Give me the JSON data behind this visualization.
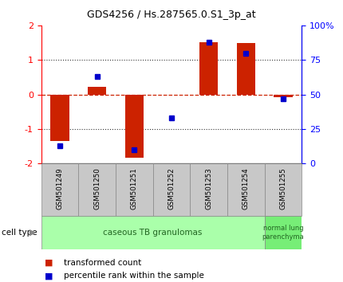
{
  "title": "GDS4256 / Hs.287565.0.S1_3p_at",
  "samples": [
    "GSM501249",
    "GSM501250",
    "GSM501251",
    "GSM501252",
    "GSM501253",
    "GSM501254",
    "GSM501255"
  ],
  "transformed_count": [
    -1.35,
    0.22,
    -1.82,
    -0.02,
    1.52,
    1.48,
    -0.08
  ],
  "percentile_rank": [
    13,
    63,
    10,
    33,
    88,
    80,
    47
  ],
  "ylim_left": [
    -2,
    2
  ],
  "ylim_right": [
    0,
    100
  ],
  "yticks_left": [
    -2,
    -1,
    0,
    1,
    2
  ],
  "yticks_right": [
    0,
    25,
    50,
    75,
    100
  ],
  "ytick_labels_right": [
    "0",
    "25",
    "50",
    "75",
    "100%"
  ],
  "bar_color": "#CC2200",
  "dot_color": "#0000CC",
  "zero_line_color": "#CC2200",
  "dotted_line_color": "#333333",
  "sample_box_color": "#C8C8C8",
  "group1_color": "#AAFFAA",
  "group2_color": "#77EE77",
  "group1_label": "caseous TB granulomas",
  "group2_label": "normal lung\nparenchyma",
  "group1_count": 6,
  "group2_count": 1,
  "cell_type_label": "cell type",
  "legend_red_label": "transformed count",
  "legend_blue_label": "percentile rank within the sample",
  "bar_width": 0.5
}
